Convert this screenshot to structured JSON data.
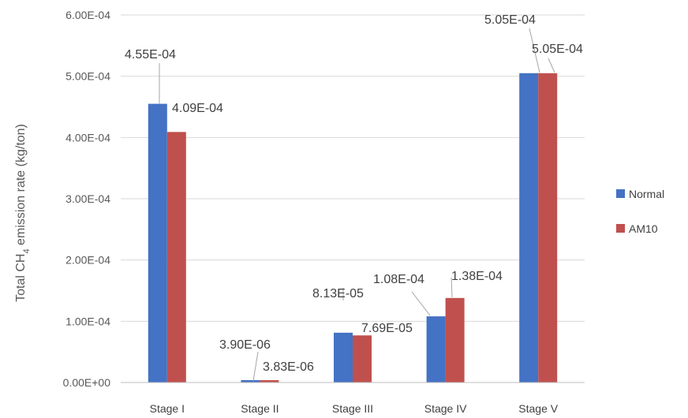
{
  "chart_data": {
    "type": "bar",
    "categories": [
      "Stage I",
      "Stage II",
      "Stage III",
      "Stage IV",
      "Stage V"
    ],
    "series": [
      {
        "name": "Normal",
        "color": "#4472C4",
        "values": [
          0.000455,
          3.9e-06,
          8.13e-05,
          0.000108,
          0.000505
        ],
        "labels": [
          "4.55E-04",
          "3.90E-06",
          "8.13E-05",
          "1.08E-04",
          "5.05E-04"
        ]
      },
      {
        "name": "AM10",
        "color": "#C0504D",
        "values": [
          0.000409,
          3.83e-06,
          7.69e-05,
          0.000138,
          0.000505
        ],
        "labels": [
          "4.09E-04",
          "3.83E-06",
          "7.69E-05",
          "1.38E-04",
          "5.05E-04"
        ]
      }
    ],
    "ylabel_main": "Total CH",
    "ylabel_sub": "4",
    "ylabel_rest": " emission rate (kg/ton)",
    "ylim": [
      0,
      0.0006
    ],
    "yticks": [
      {
        "value": 0,
        "label": "0.00E+00"
      },
      {
        "value": 0.0001,
        "label": "1.00E-04"
      },
      {
        "value": 0.0002,
        "label": "2.00E-04"
      },
      {
        "value": 0.0003,
        "label": "3.00E-04"
      },
      {
        "value": 0.0004,
        "label": "4.00E-04"
      },
      {
        "value": 0.0005,
        "label": "5.00E-04"
      },
      {
        "value": 0.0006,
        "label": "6.00E-04"
      }
    ],
    "grid": true,
    "legend_position": "right"
  }
}
